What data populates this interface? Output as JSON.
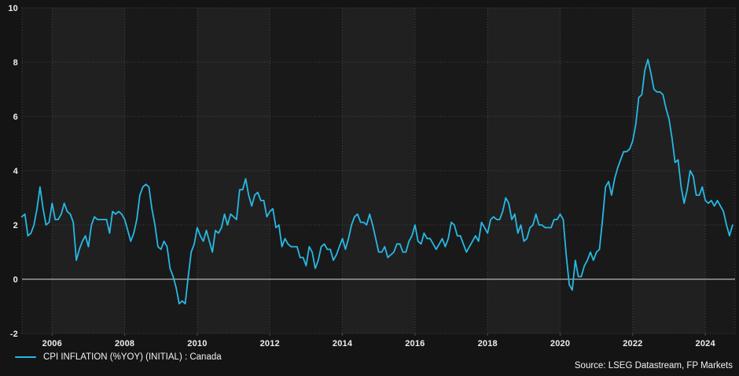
{
  "legend": {
    "label": "CPI INFLATION (%YOY) (INITIAL) : Canada"
  },
  "source": {
    "text": "Source: LSEG Datastream, FP Markets"
  },
  "colors": {
    "line": "#27b9e4",
    "background": "#141414",
    "band_dark": "#191919",
    "band_light": "#202020",
    "grid": "#4a4a4a",
    "zero_line": "#9a9a9a",
    "text": "#ededed"
  },
  "chart_data": {
    "type": "line",
    "title": "",
    "xlabel": "",
    "ylabel": "",
    "grid": "dotted",
    "legend_position": "bottom-left",
    "zero_line": true,
    "xlim": [
      2005.17,
      2024.82
    ],
    "ylim": [
      -2,
      10
    ],
    "x_ticks": [
      2006,
      2008,
      2010,
      2012,
      2014,
      2016,
      2018,
      2020,
      2022,
      2024
    ],
    "y_ticks": [
      -2,
      0,
      2,
      4,
      6,
      8,
      10
    ],
    "series": [
      {
        "name": "CPI INFLATION (%YOY) (INITIAL) : Canada",
        "frequency": "monthly",
        "start": {
          "year": 2005,
          "month": 3
        },
        "values": [
          2.3,
          2.4,
          1.6,
          1.7,
          2.0,
          2.6,
          3.4,
          2.6,
          2.0,
          2.1,
          2.8,
          2.2,
          2.2,
          2.4,
          2.8,
          2.5,
          2.4,
          2.1,
          0.7,
          1.1,
          1.4,
          1.6,
          1.2,
          2.0,
          2.3,
          2.2,
          2.2,
          2.2,
          2.2,
          1.7,
          2.5,
          2.4,
          2.5,
          2.4,
          2.2,
          1.8,
          1.4,
          1.7,
          2.2,
          3.1,
          3.4,
          3.5,
          3.4,
          2.6,
          2.0,
          1.2,
          1.1,
          1.4,
          1.2,
          0.4,
          0.1,
          -0.3,
          -0.9,
          -0.8,
          -0.9,
          0.1,
          1.0,
          1.3,
          1.9,
          1.6,
          1.4,
          1.8,
          1.4,
          1.0,
          1.8,
          1.7,
          1.9,
          2.4,
          2.0,
          2.4,
          2.3,
          2.2,
          3.3,
          3.3,
          3.7,
          3.1,
          2.7,
          3.1,
          3.2,
          2.9,
          2.9,
          2.3,
          2.5,
          2.6,
          1.9,
          2.0,
          1.2,
          1.5,
          1.3,
          1.2,
          1.2,
          1.2,
          0.8,
          0.8,
          0.5,
          1.2,
          1.0,
          0.4,
          0.7,
          1.2,
          1.3,
          1.1,
          1.1,
          0.7,
          0.9,
          1.2,
          1.5,
          1.1,
          1.5,
          2.0,
          2.3,
          2.4,
          2.1,
          2.1,
          2.0,
          2.4,
          2.0,
          1.5,
          1.0,
          1.0,
          1.2,
          0.8,
          0.9,
          1.0,
          1.3,
          1.3,
          1.0,
          1.0,
          1.4,
          1.6,
          2.0,
          1.4,
          1.3,
          1.7,
          1.5,
          1.5,
          1.3,
          1.1,
          1.3,
          1.5,
          1.2,
          1.5,
          2.1,
          2.0,
          1.6,
          1.6,
          1.3,
          1.0,
          1.2,
          1.4,
          1.6,
          1.4,
          2.1,
          1.9,
          1.7,
          2.2,
          2.3,
          2.2,
          2.2,
          2.5,
          3.0,
          2.8,
          2.2,
          2.4,
          1.7,
          2.0,
          1.4,
          1.5,
          1.9,
          2.0,
          2.4,
          2.0,
          2.0,
          1.9,
          1.9,
          1.9,
          2.2,
          2.2,
          2.4,
          2.2,
          0.9,
          -0.2,
          -0.4,
          0.7,
          0.1,
          0.1,
          0.5,
          0.7,
          1.0,
          0.7,
          1.0,
          1.1,
          2.2,
          3.4,
          3.6,
          3.1,
          3.7,
          4.1,
          4.4,
          4.7,
          4.7,
          4.8,
          5.1,
          5.7,
          6.7,
          6.8,
          7.7,
          8.1,
          7.6,
          7.0,
          6.9,
          6.9,
          6.8,
          6.3,
          5.9,
          5.2,
          4.3,
          4.4,
          3.4,
          2.8,
          3.3,
          4.0,
          3.8,
          3.1,
          3.1,
          3.4,
          2.9,
          2.8,
          2.9,
          2.7,
          2.9,
          2.7,
          2.5,
          2.0,
          1.6,
          2.0
        ]
      }
    ]
  }
}
